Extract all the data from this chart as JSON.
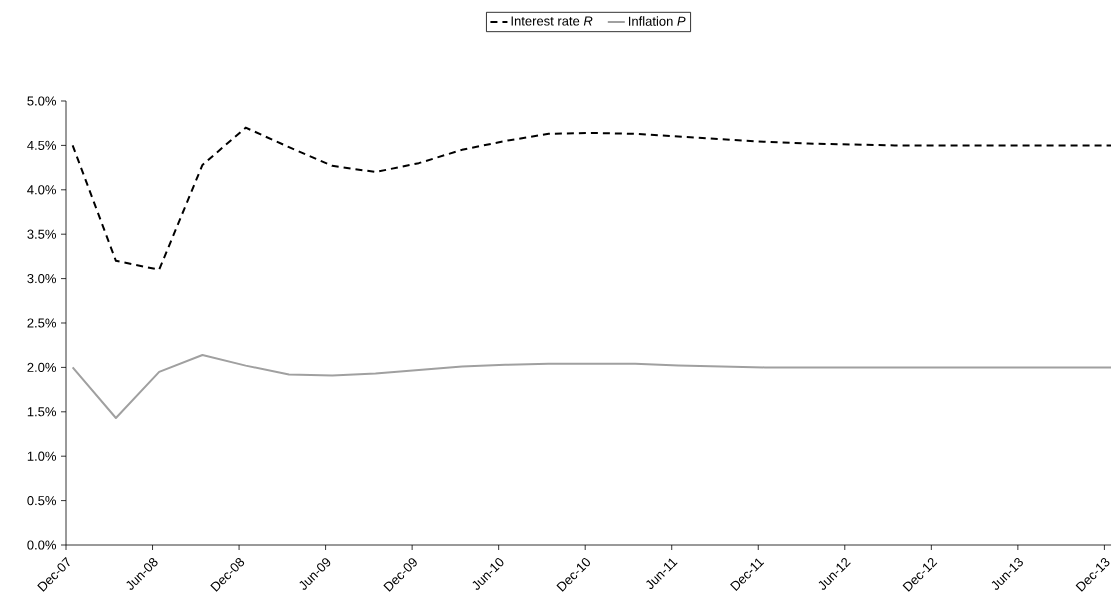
{
  "chart_data": {
    "type": "line",
    "x": [
      "2007-12-15",
      "2008-03-15",
      "2008-06-15",
      "2008-09-15",
      "2008-12-15",
      "2009-03-15",
      "2009-06-15",
      "2009-09-15",
      "2009-12-15",
      "2010-03-15",
      "2010-06-15",
      "2010-09-15",
      "2010-12-15",
      "2011-03-15",
      "2011-06-15",
      "2011-09-15",
      "2011-12-15",
      "2012-03-15",
      "2012-06-15",
      "2012-09-15",
      "2012-12-15",
      "2013-03-15",
      "2013-06-15",
      "2013-09-15",
      "2013-12-15"
    ],
    "series": [
      {
        "name": "Interest rate *R*",
        "color": "#000000",
        "line_style": "dashed",
        "values": [
          4.5,
          3.2,
          3.1,
          4.28,
          4.7,
          4.48,
          4.27,
          4.2,
          4.3,
          4.45,
          4.55,
          4.63,
          4.64,
          4.63,
          4.6,
          4.57,
          4.54,
          4.52,
          4.51,
          4.5,
          4.5,
          4.5,
          4.5,
          4.5,
          4.5
        ]
      },
      {
        "name": "Inflation *P*",
        "color": "#a0a0a0",
        "line_style": "solid",
        "values": [
          2.0,
          1.43,
          1.95,
          2.14,
          2.02,
          1.92,
          1.91,
          1.93,
          1.97,
          2.01,
          2.03,
          2.04,
          2.04,
          2.04,
          2.02,
          2.01,
          2.0,
          2.0,
          2.0,
          2.0,
          2.0,
          2.0,
          2.0,
          2.0,
          2.0
        ]
      }
    ],
    "xlim": [
      "2007-12",
      "2013-12-15"
    ],
    "xticks": [
      {
        "value": "2007-12",
        "label": "Dec-07"
      },
      {
        "value": "2008-06",
        "label": "Jun-08"
      },
      {
        "value": "2008-12",
        "label": "Dec-08"
      },
      {
        "value": "2009-06",
        "label": "Jun-09"
      },
      {
        "value": "2009-12",
        "label": "Dec-09"
      },
      {
        "value": "2010-06",
        "label": "Jun-10"
      },
      {
        "value": "2010-12",
        "label": "Dec-10"
      },
      {
        "value": "2011-06",
        "label": "Jun-11"
      },
      {
        "value": "2011-12",
        "label": "Dec-11"
      },
      {
        "value": "2012-06",
        "label": "Jun-12"
      },
      {
        "value": "2012-12",
        "label": "Dec-12"
      },
      {
        "value": "2013-06",
        "label": "Jun-13"
      },
      {
        "value": "2013-12",
        "label": "Dec-13"
      }
    ],
    "ylim": [
      0,
      5
    ],
    "yticks": [
      {
        "value": 0,
        "label": "0.0%"
      },
      {
        "value": 0.5,
        "label": "0.5%"
      },
      {
        "value": 1,
        "label": "1.0%"
      },
      {
        "value": 1.5,
        "label": "1.5%"
      },
      {
        "value": 2,
        "label": "2.0%"
      },
      {
        "value": 2.5,
        "label": "2.5%"
      },
      {
        "value": 3,
        "label": "3.0%"
      },
      {
        "value": 3.5,
        "label": "3.5%"
      },
      {
        "value": 4,
        "label": "4.0%"
      },
      {
        "value": 4.5,
        "label": "4.5%"
      },
      {
        "value": 5,
        "label": "5.0%"
      }
    ],
    "legend": "top",
    "grid": false
  }
}
